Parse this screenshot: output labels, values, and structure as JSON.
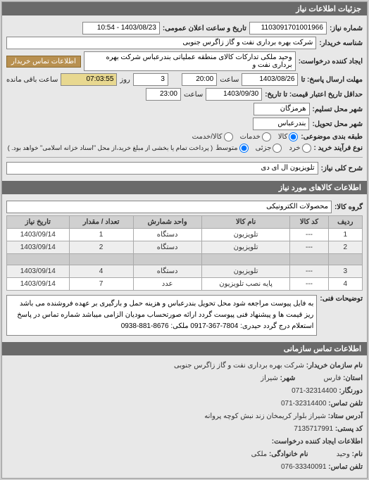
{
  "panel1": {
    "title": "جزئیات اطلاعات نیاز"
  },
  "form": {
    "req_no_label": "شماره نیاز:",
    "req_no": "1103091701001966",
    "announce_label": "تاریخ و ساعت اعلان عمومی:",
    "announce_val": "1403/08/23 - 10:54",
    "buyer_label": "شناسه خریدار:",
    "buyer_val": "شرکت بهره برداری نفت و گاز زاگرس جنوبی",
    "creator_label": "ایجاد کننده درخواست:",
    "creator_val": "وحید ملکی تدارکات کالای منطقه عملیاتی بندرعباس شرکت بهره برداری نفت و",
    "contact_btn": "اطلاعات تماس خریدار",
    "deadline_label": "مهلت ارسال پاسخ: تا",
    "deadline_date": "1403/08/26",
    "time_label": "ساعت",
    "deadline_time": "20:00",
    "valid_label": "حداقل تاریخ اعتبار قیمت: تا تاریخ:",
    "valid_date": "1403/09/30",
    "valid_time": "23:00",
    "timer": "07:03:55",
    "days": "3",
    "days_label": "روز",
    "remain_label": "ساعت باقی مانده",
    "city_label": "شهر محل تسلیم:",
    "city_val": "هرمزگان",
    "delivery_label": "شهر محل تحویل:",
    "delivery_val": "بندرعباس",
    "subject_type_label": "طبقه بندی موضوعی:",
    "subject_types": {
      "kala": "کالا",
      "khadamat": "خدمات",
      "both": "کالا/خدمت"
    },
    "buy_type_label": "نوع فرآیند خرید :",
    "buy_types": {
      "kh": "خرد",
      "jo": "جزئی",
      "mo": "متوسط"
    },
    "buy_note": "( پرداخت تمام یا بخشی از مبلغ خرید،از محل \"اسناد خزانه اسلامی\" خواهد بود. )",
    "desc_key_label": "شرح کلی نیاز:",
    "desc_key_val": "تلویزیون ال ای دی",
    "panel2_title": "اطلاعات کالاهای مورد نیاز",
    "group_label": "گروه کالا:",
    "group_val": "محصولات الکترونیکی"
  },
  "table": {
    "headers": [
      "ردیف",
      "کد کالا",
      "نام کالا",
      "واحد شمارش",
      "تعداد / مقدار",
      "تاریخ نیاز"
    ],
    "rows": [
      [
        "1",
        "---",
        "تلویزیون",
        "دستگاه",
        "1",
        "1403/09/14"
      ],
      [
        "2",
        "---",
        "تلویزیون",
        "دستگاه",
        "2",
        "1403/09/14"
      ],
      [
        "",
        "",
        "",
        "",
        "",
        ""
      ],
      [
        "3",
        "---",
        "تلویزیون",
        "دستگاه",
        "4",
        "1403/09/14"
      ],
      [
        "4",
        "---",
        "پایه نصب تلویزیون",
        "عدد",
        "7",
        "1403/09/14"
      ]
    ]
  },
  "notes": {
    "label": "توضیحات فنی:",
    "text": "به فایل پیوست مراجعه شود محل تحویل بندرعباس و هزینه حمل و بارگیری بر عهده فروشنده می باشد ریز قیمت ها و پیشنهاد فنی پیوست گردد ارائه صورتحساب مودیان الزامی میباشد شماره تماس در پاسخ استعلام درج گردد حیدری: 7804-367-0917 ملکی: 8676-881-0938"
  },
  "panel3": {
    "title": "اطلاعات تماس سازمانی"
  },
  "contact": {
    "org_label": "نام سازمان خریدار:",
    "org_val": "شرکت بهره برداری نفت و گاز زاگرس جنوبی",
    "state_label": "استان:",
    "state_val": "فارس",
    "city_label": "شهر:",
    "city_val": "شیراز",
    "fax_label": "دورنگار:",
    "fax_val": "32314400-071",
    "tel_label": "تلفن تماس:",
    "tel_val": "32314400-071",
    "addr_label": "آدرس ستاد:",
    "addr_val": "شیراز بلوار کریمخان زند نبش کوچه پروانه",
    "post_label": "کد پستی:",
    "post_val": "7135717991",
    "creator2_label": "اطلاعات ایجاد کننده درخواست:",
    "name_label": "نام:",
    "name_val": "وحید",
    "lname_label": "نام خانوادگی:",
    "lname_val": "ملکی",
    "tel2_label": "تلفن تماس:",
    "tel2_val": "33340091-076"
  },
  "colors": {
    "header_bg": "#6a6a6a",
    "btn_bg": "#b89050",
    "timer_bg": "#e8d890"
  }
}
